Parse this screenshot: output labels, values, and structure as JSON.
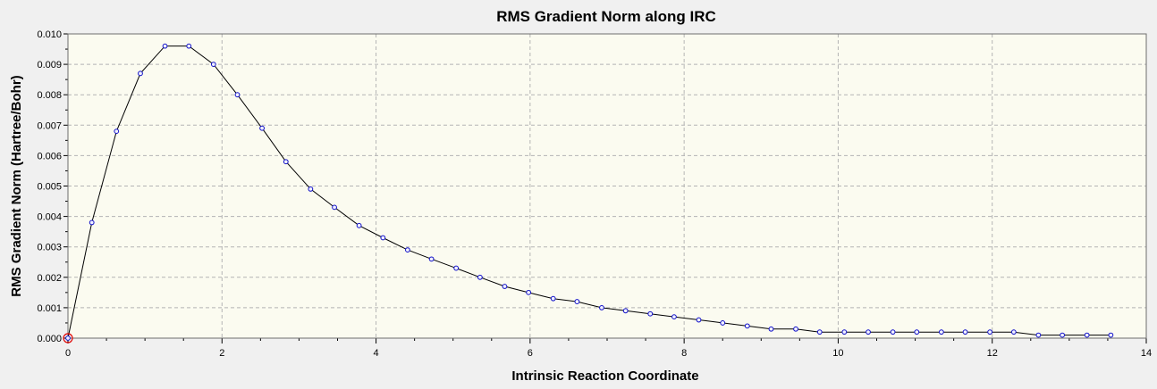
{
  "colors": {
    "window_bg": "#f0f0f0",
    "plot_bg": "#fbfbf0",
    "grid": "#b4b4b4",
    "line": "#000000",
    "marker": "#1010c8",
    "marker_fill": "#f0f0ff",
    "highlight": "#e00000"
  },
  "chart_data": {
    "type": "line",
    "title": "RMS Gradient Norm along IRC",
    "xlabel": "Intrinsic Reaction Coordinate",
    "ylabel": "RMS Gradient Norm (Hartree/Bohr)",
    "xlim": [
      0,
      14
    ],
    "ylim": [
      0,
      0.01
    ],
    "x_ticks": [
      "0",
      "2",
      "4",
      "6",
      "8",
      "10",
      "12",
      "14"
    ],
    "y_ticks": [
      "0.000",
      "0.001",
      "0.002",
      "0.003",
      "0.004",
      "0.005",
      "0.006",
      "0.007",
      "0.008",
      "0.009",
      "0.010"
    ],
    "grid": true,
    "marker": "circle",
    "highlighted_point_index": 0,
    "x": [
      0,
      0.31,
      0.63,
      0.94,
      1.26,
      1.57,
      1.89,
      2.2,
      2.52,
      2.83,
      3.15,
      3.46,
      3.78,
      4.09,
      4.41,
      4.72,
      5.04,
      5.35,
      5.67,
      5.98,
      6.3,
      6.61,
      6.93,
      7.24,
      7.56,
      7.87,
      8.19,
      8.5,
      8.82,
      9.13,
      9.45,
      9.76,
      10.08,
      10.39,
      10.71,
      11.02,
      11.34,
      11.65,
      11.97,
      12.28,
      12.6,
      12.91,
      13.23,
      13.54
    ],
    "y": [
      0.0,
      0.0038,
      0.0068,
      0.0087,
      0.0096,
      0.0096,
      0.009,
      0.008,
      0.0069,
      0.0058,
      0.0049,
      0.0043,
      0.0037,
      0.0033,
      0.0029,
      0.0026,
      0.0023,
      0.002,
      0.0017,
      0.0015,
      0.0013,
      0.0012,
      0.001,
      0.0009,
      0.0008,
      0.0007,
      0.0006,
      0.0005,
      0.0004,
      0.0003,
      0.0003,
      0.0002,
      0.0002,
      0.0002,
      0.0002,
      0.0002,
      0.0002,
      0.0002,
      0.0002,
      0.0002,
      0.0001,
      0.0001,
      0.0001,
      0.0001
    ]
  }
}
